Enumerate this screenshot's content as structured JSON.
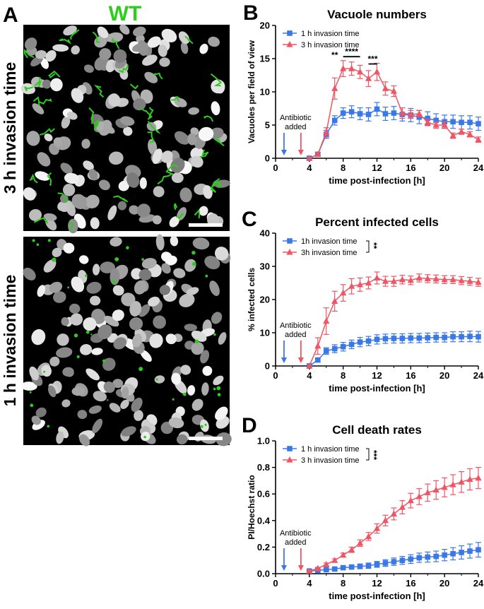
{
  "panel_labels": {
    "a": "A",
    "b": "B",
    "c": "C",
    "d": "D"
  },
  "micrograph": {
    "genotype_label": "WT",
    "top_row_label": "3 h invasion time",
    "bottom_row_label": "1 h invasion time",
    "colors": {
      "stain": "#2ecc1f",
      "nuclei": "#d0d0d0",
      "background": "#000000"
    }
  },
  "colors": {
    "blue": "#3a78e8",
    "red": "#ef5563",
    "axis": "#000000"
  },
  "annotation": {
    "line1": "Antibiotic",
    "line2": "added",
    "arrow_blue_x": 1,
    "arrow_red_x": 3
  },
  "chart_data": [
    {
      "id": "B",
      "type": "line",
      "title": "Vacuole numbers",
      "xlabel": "time post-infection [h]",
      "ylabel": "Vacuoles per field of view",
      "xlim": [
        0,
        24
      ],
      "ylim": [
        0,
        20
      ],
      "xticks": [
        "0",
        "4",
        "8",
        "12",
        "16",
        "20",
        "24"
      ],
      "yticks": [
        "0",
        "5",
        "10",
        "15",
        "20"
      ],
      "legend_position": "top-left",
      "series": [
        {
          "name": "1 h invasion time",
          "color": "blue",
          "marker": "square",
          "x": [
            4,
            5,
            6,
            7,
            8,
            9,
            10,
            11,
            12,
            13,
            14,
            15,
            16,
            17,
            18,
            19,
            20,
            21,
            22,
            23,
            24
          ],
          "y": [
            0,
            0.6,
            3.6,
            5.7,
            6.8,
            7.0,
            6.7,
            6.6,
            7.4,
            6.7,
            6.8,
            6.6,
            6.5,
            6.2,
            6.0,
            5.7,
            5.5,
            5.5,
            5.4,
            5.4,
            5.2
          ],
          "err": [
            0,
            0.3,
            0.6,
            0.7,
            0.8,
            0.9,
            0.9,
            1.0,
            1.0,
            1.0,
            1.0,
            1.0,
            1.0,
            1.0,
            1.0,
            1.0,
            1.0,
            1.0,
            1.0,
            1.0,
            1.0
          ]
        },
        {
          "name": "3 h invasion time",
          "color": "red",
          "marker": "triangle",
          "x": [
            4,
            5,
            6,
            7,
            8,
            9,
            10,
            11,
            12,
            13,
            14,
            15,
            16,
            17,
            18,
            19,
            20,
            21,
            22,
            23,
            24
          ],
          "y": [
            0,
            0.6,
            3.9,
            10.5,
            13.5,
            13.5,
            13.0,
            12.0,
            13.0,
            10.5,
            10.1,
            6.8,
            6.6,
            6.7,
            5.4,
            5.0,
            5.0,
            3.4,
            4.0,
            3.6,
            2.8
          ],
          "err": [
            0,
            0.3,
            0.7,
            1.6,
            1.2,
            1.0,
            1.0,
            1.2,
            1.3,
            1.0,
            0.8,
            0.8,
            0.6,
            0.5,
            0.5,
            0.5,
            0.5,
            0.4,
            0.4,
            0.4,
            0.4
          ]
        }
      ],
      "significance": [
        {
          "label": "**",
          "x": 7
        },
        {
          "label": "****",
          "x1": 8,
          "x2": 10
        },
        {
          "label": "***",
          "x1": 11,
          "x2": 12
        }
      ]
    },
    {
      "id": "C",
      "type": "line",
      "title": "Percent infected cells",
      "xlabel": "time post-infection [h]",
      "ylabel": "% infected cells",
      "xlim": [
        0,
        24
      ],
      "ylim": [
        0,
        40
      ],
      "xticks": [
        "0",
        "4",
        "8",
        "12",
        "16",
        "20",
        "24"
      ],
      "yticks": [
        "0",
        "10",
        "20",
        "30",
        "40"
      ],
      "legend_position": "top-left",
      "legend_significance": "**",
      "series": [
        {
          "name": "1h invasion time",
          "color": "blue",
          "marker": "square",
          "x": [
            4,
            5,
            6,
            7,
            8,
            9,
            10,
            11,
            12,
            13,
            14,
            15,
            16,
            17,
            18,
            19,
            20,
            21,
            22,
            23,
            24
          ],
          "y": [
            0,
            1.8,
            4.5,
            5.2,
            5.8,
            6.5,
            7.2,
            7.5,
            8.0,
            8.2,
            8.3,
            8.3,
            8.4,
            8.4,
            8.5,
            8.6,
            8.6,
            8.8,
            8.8,
            8.9,
            8.8
          ],
          "err": [
            0,
            0.5,
            1.0,
            1.2,
            1.3,
            1.3,
            1.4,
            1.4,
            1.4,
            1.4,
            1.4,
            1.4,
            1.4,
            1.4,
            1.4,
            1.4,
            1.4,
            1.5,
            1.5,
            1.6,
            1.6
          ]
        },
        {
          "name": "3h invasion time",
          "color": "red",
          "marker": "triangle",
          "x": [
            4,
            5,
            6,
            7,
            8,
            9,
            10,
            11,
            12,
            13,
            14,
            15,
            16,
            17,
            18,
            19,
            20,
            21,
            22,
            23,
            24
          ],
          "y": [
            0,
            6.0,
            13.5,
            19.5,
            22.0,
            24.0,
            24.5,
            25.0,
            26.5,
            25.5,
            25.5,
            26.0,
            25.8,
            26.5,
            26.3,
            26.2,
            26.0,
            26.0,
            25.7,
            25.5,
            25.2
          ],
          "err": [
            0,
            2.5,
            4.0,
            3.0,
            2.5,
            2.3,
            2.0,
            1.8,
            1.8,
            1.5,
            1.5,
            1.3,
            1.3,
            1.2,
            1.2,
            1.2,
            1.2,
            1.2,
            1.2,
            1.2,
            1.2
          ]
        }
      ]
    },
    {
      "id": "D",
      "type": "line",
      "title": "Cell death rates",
      "xlabel": "time post-infection [h]",
      "ylabel": "PI/Hoechst ratio",
      "xlim": [
        0,
        24
      ],
      "ylim": [
        0,
        1.0
      ],
      "xticks": [
        "0",
        "4",
        "8",
        "12",
        "16",
        "20",
        "24"
      ],
      "yticks": [
        "0.0",
        "0.2",
        "0.4",
        "0.6",
        "0.8",
        "1.0"
      ],
      "legend_position": "top-left",
      "legend_significance": "***",
      "series": [
        {
          "name": "1 h invasion time",
          "color": "blue",
          "marker": "square",
          "x": [
            4,
            5,
            6,
            7,
            8,
            9,
            10,
            11,
            12,
            13,
            14,
            15,
            16,
            17,
            18,
            19,
            20,
            21,
            22,
            23,
            24
          ],
          "y": [
            0.02,
            0.025,
            0.03,
            0.035,
            0.045,
            0.05,
            0.055,
            0.06,
            0.07,
            0.08,
            0.09,
            0.1,
            0.11,
            0.12,
            0.125,
            0.13,
            0.14,
            0.15,
            0.16,
            0.17,
            0.18
          ],
          "err": [
            0.005,
            0.005,
            0.008,
            0.01,
            0.012,
            0.015,
            0.018,
            0.02,
            0.022,
            0.025,
            0.028,
            0.03,
            0.033,
            0.035,
            0.038,
            0.04,
            0.043,
            0.046,
            0.05,
            0.053,
            0.055
          ]
        },
        {
          "name": "3 h invasion time",
          "color": "red",
          "marker": "triangle",
          "x": [
            4,
            5,
            6,
            7,
            8,
            9,
            10,
            11,
            12,
            13,
            14,
            15,
            16,
            17,
            18,
            19,
            20,
            21,
            22,
            23,
            24
          ],
          "y": [
            0.02,
            0.04,
            0.07,
            0.1,
            0.14,
            0.18,
            0.23,
            0.28,
            0.34,
            0.4,
            0.45,
            0.5,
            0.55,
            0.58,
            0.61,
            0.63,
            0.65,
            0.67,
            0.69,
            0.71,
            0.72
          ],
          "err": [
            0.005,
            0.008,
            0.01,
            0.012,
            0.015,
            0.02,
            0.025,
            0.03,
            0.035,
            0.04,
            0.045,
            0.05,
            0.055,
            0.06,
            0.065,
            0.07,
            0.072,
            0.075,
            0.078,
            0.08,
            0.08
          ]
        }
      ]
    }
  ]
}
